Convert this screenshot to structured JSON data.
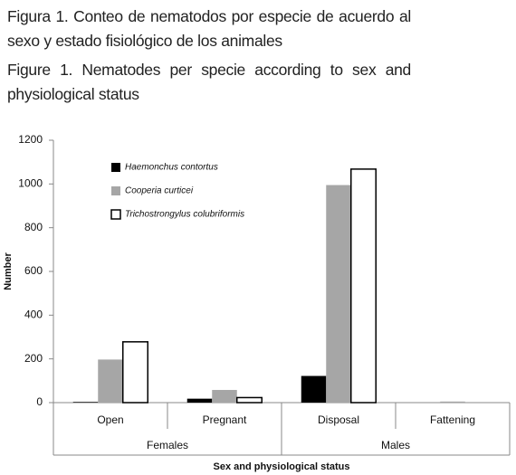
{
  "caption_es": "Figura 1. Conteo de nematodos por especie de acuerdo al sexo y estado fisiológico de los animales",
  "caption_en": "Figure 1. Nematodes per specie according to sex and physiological status",
  "chart_data": {
    "type": "bar",
    "x_label": "Sex and physiological status",
    "y_label": "Number",
    "categories": [
      "Open",
      "Pregnant",
      "Disposal",
      "Fattening"
    ],
    "groups": [
      "Females",
      "Males"
    ],
    "series": [
      {
        "name": "Haemonchus contortus",
        "color": "#000000",
        "values": [
          3,
          18,
          122,
          0
        ]
      },
      {
        "name": "Cooperia curticei",
        "color": "#a6a6a6",
        "values": [
          197,
          58,
          995,
          5
        ]
      },
      {
        "name": "Trichostrongylus colubriformis",
        "color": "#ffffff",
        "values": [
          278,
          23,
          1068,
          0
        ]
      }
    ],
    "ylim": [
      0,
      1200
    ],
    "yticks": [
      0,
      200,
      400,
      600,
      800,
      1000,
      1200
    ]
  }
}
